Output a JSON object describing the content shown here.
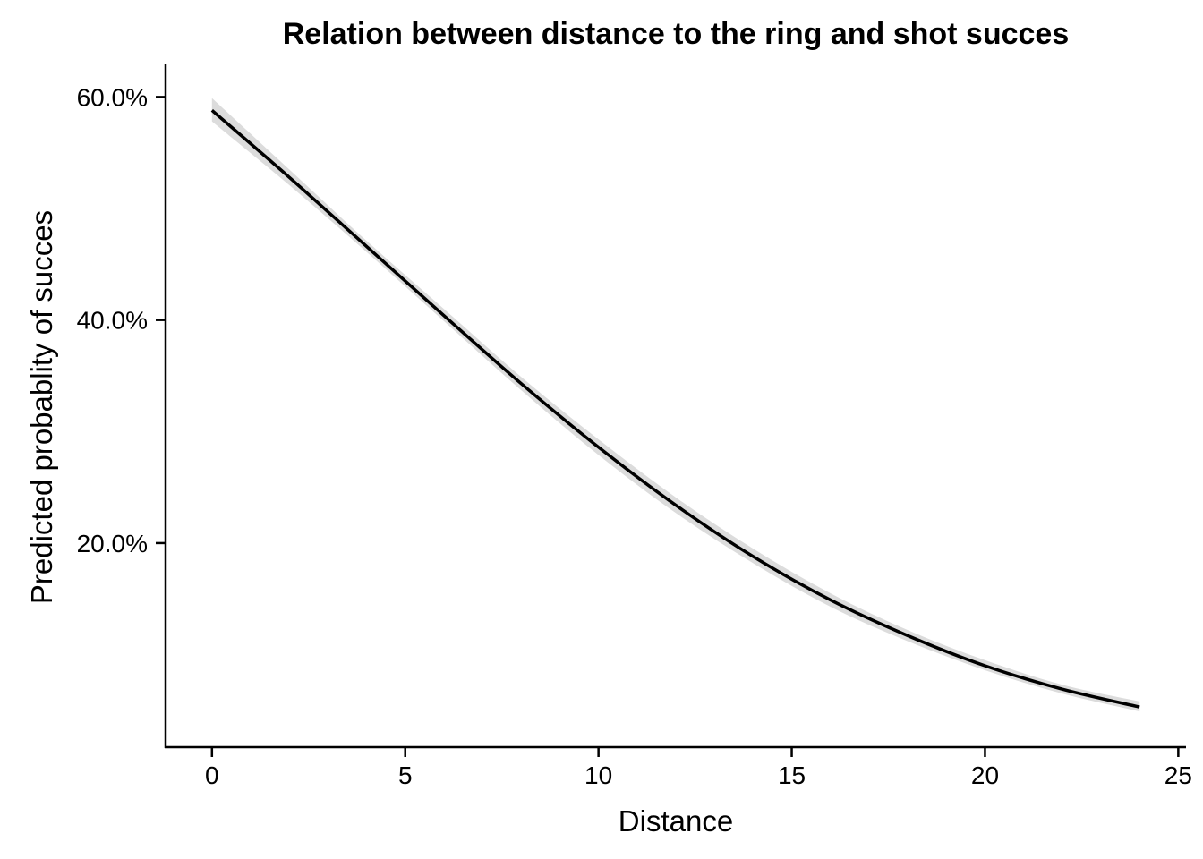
{
  "chart_data": {
    "type": "line",
    "title": "Relation between distance to the ring and shot succes",
    "xlabel": "Distance",
    "ylabel": "Predicted probablity of succes",
    "xlim": [
      -1.2,
      25.2
    ],
    "ylim": [
      0.017,
      0.63
    ],
    "x_ticks": [
      0,
      5,
      10,
      15,
      20,
      25
    ],
    "x_tick_labels": [
      "0",
      "5",
      "10",
      "15",
      "20",
      "25"
    ],
    "y_ticks": [
      0.2,
      0.4,
      0.6
    ],
    "y_tick_labels": [
      "20.0%",
      "40.0%",
      "60.0%"
    ],
    "grid": false,
    "legend": "none",
    "line_color": "#000000",
    "band_color": "#dcdcdc",
    "series": [
      {
        "x": [
          0,
          2,
          4,
          6,
          8,
          10,
          12,
          14,
          16,
          18,
          20,
          22,
          24
        ],
        "values": [
          0.588,
          0.528,
          0.466,
          0.404,
          0.343,
          0.286,
          0.234,
          0.188,
          0.149,
          0.117,
          0.09,
          0.069,
          0.053
        ],
        "ci_lower": [
          0.578,
          0.521,
          0.461,
          0.399,
          0.337,
          0.279,
          0.227,
          0.182,
          0.143,
          0.112,
          0.086,
          0.065,
          0.049
        ],
        "ci_upper": [
          0.599,
          0.535,
          0.471,
          0.41,
          0.349,
          0.293,
          0.241,
          0.195,
          0.155,
          0.122,
          0.095,
          0.073,
          0.058
        ]
      }
    ]
  }
}
